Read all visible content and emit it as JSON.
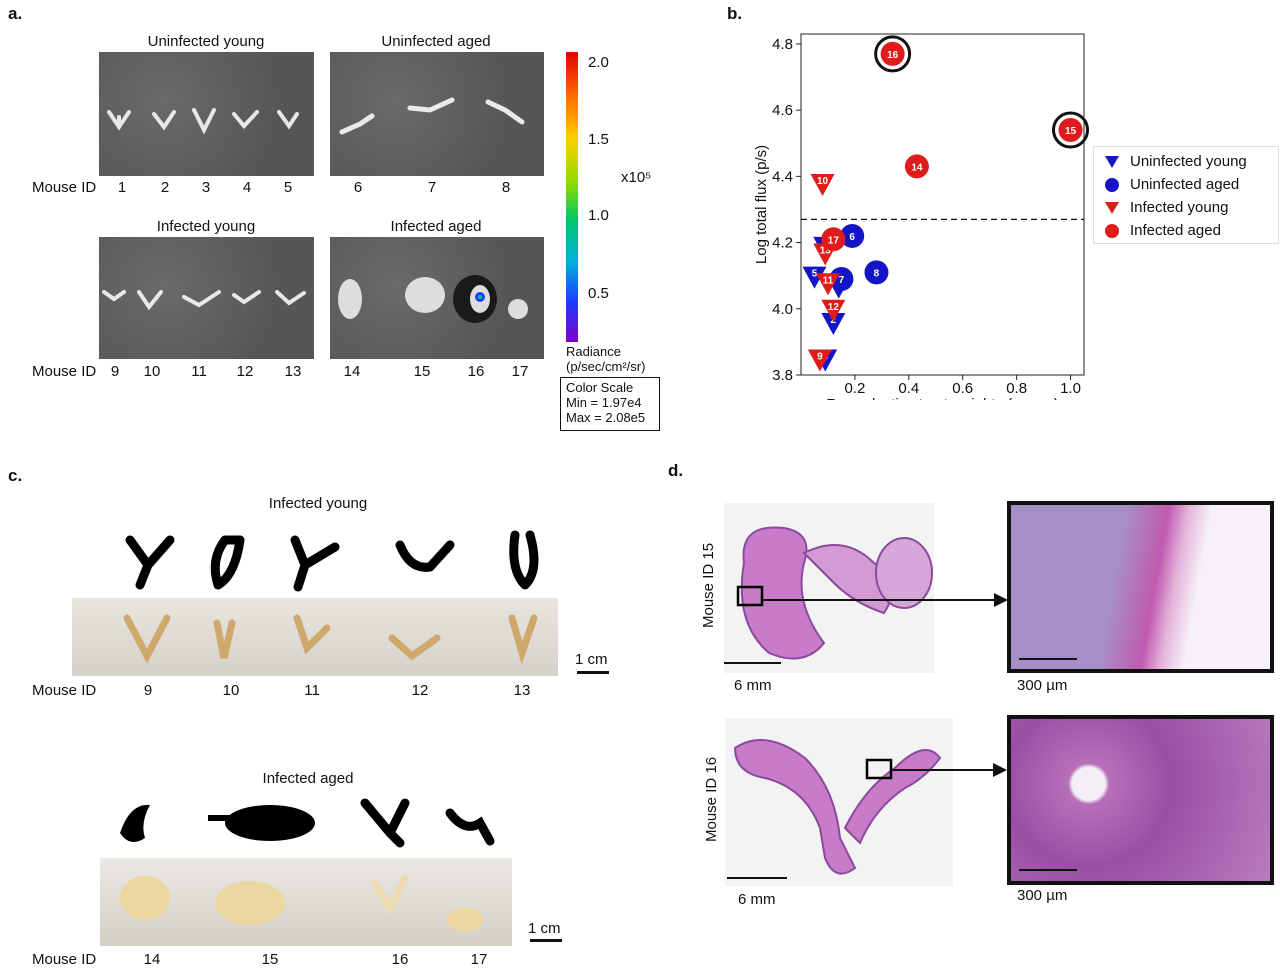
{
  "panels": {
    "a": {
      "letter": "a.",
      "titles": [
        "Uninfected young",
        "Uninfected aged",
        "Infected young",
        "Infected aged"
      ],
      "mouse_id_label": "Mouse ID",
      "ids_row1": [
        "1",
        "2",
        "3",
        "4",
        "5",
        "6",
        "7",
        "8"
      ],
      "ids_row2": [
        "9",
        "10",
        "11",
        "12",
        "13",
        "14",
        "15",
        "16",
        "17"
      ],
      "colorbar": {
        "ticks": [
          "2.0",
          "1.5",
          "1.0",
          "0.5"
        ],
        "multiplier": "x10⁵",
        "radiance_label": "Radiance",
        "radiance_units": "(p/sec/cm²/sr)",
        "scale_title": "Color Scale",
        "min_label": "Min = 1.97e4",
        "max_label": "Max = 2.08e5"
      }
    },
    "b": {
      "letter": "b."
    },
    "c": {
      "letter": "c.",
      "title_young": "Infected young",
      "title_aged": "Infected aged",
      "mouse_id_label": "Mouse ID",
      "ids_young": [
        "9",
        "10",
        "11",
        "12",
        "13"
      ],
      "ids_aged": [
        "14",
        "15",
        "16",
        "17"
      ],
      "scale_label": "1 cm"
    },
    "d": {
      "letter": "d.",
      "label_15": "Mouse ID 15",
      "label_16": "Mouse ID 16",
      "scale_big": "6 mm",
      "scale_small": "300 µm"
    }
  },
  "colors": {
    "uninfected": "#1515c8",
    "infected": "#e01b1b",
    "tissue_pink": "#c77bc9",
    "tissue_purple": "#8a4a9e"
  },
  "chart_data": {
    "type": "scatter",
    "xlabel": "Reproductive tract weights (grams)",
    "ylabel": "Log total flux (p/s)",
    "xlim": [
      0.0,
      1.05
    ],
    "ylim": [
      3.8,
      4.83
    ],
    "xticks": [
      "0.2",
      "0.4",
      "0.6",
      "0.8",
      "1.0"
    ],
    "yticks": [
      "3.8",
      "4.0",
      "4.2",
      "4.4",
      "4.6",
      "4.8"
    ],
    "threshold": 4.27,
    "legend_position": "right",
    "series": [
      {
        "name": "Uninfected young",
        "marker": "triangle",
        "color": "#1515c8",
        "points": [
          {
            "id": "1",
            "x": 0.14,
            "y": 4.07
          },
          {
            "id": "2",
            "x": 0.12,
            "y": 3.96
          },
          {
            "id": "3",
            "x": 0.09,
            "y": 3.85
          },
          {
            "id": "4",
            "x": 0.09,
            "y": 4.19
          },
          {
            "id": "5",
            "x": 0.05,
            "y": 4.1
          }
        ]
      },
      {
        "name": "Uninfected aged",
        "marker": "circle",
        "color": "#1515c8",
        "points": [
          {
            "id": "6",
            "x": 0.19,
            "y": 4.22
          },
          {
            "id": "7",
            "x": 0.15,
            "y": 4.09
          },
          {
            "id": "8",
            "x": 0.28,
            "y": 4.11
          }
        ]
      },
      {
        "name": "Infected young",
        "marker": "triangle",
        "color": "#e01b1b",
        "points": [
          {
            "id": "9",
            "x": 0.07,
            "y": 3.85
          },
          {
            "id": "10",
            "x": 0.08,
            "y": 4.38
          },
          {
            "id": "11",
            "x": 0.1,
            "y": 4.08
          },
          {
            "id": "12",
            "x": 0.12,
            "y": 4.0
          },
          {
            "id": "13",
            "x": 0.09,
            "y": 4.17
          }
        ]
      },
      {
        "name": "Infected aged",
        "marker": "circle",
        "color": "#e01b1b",
        "points": [
          {
            "id": "14",
            "x": 0.43,
            "y": 4.43
          },
          {
            "id": "15",
            "x": 1.0,
            "y": 4.54,
            "highlight": true
          },
          {
            "id": "16",
            "x": 0.34,
            "y": 4.77,
            "highlight": true
          },
          {
            "id": "17",
            "x": 0.12,
            "y": 4.21
          }
        ]
      }
    ]
  }
}
